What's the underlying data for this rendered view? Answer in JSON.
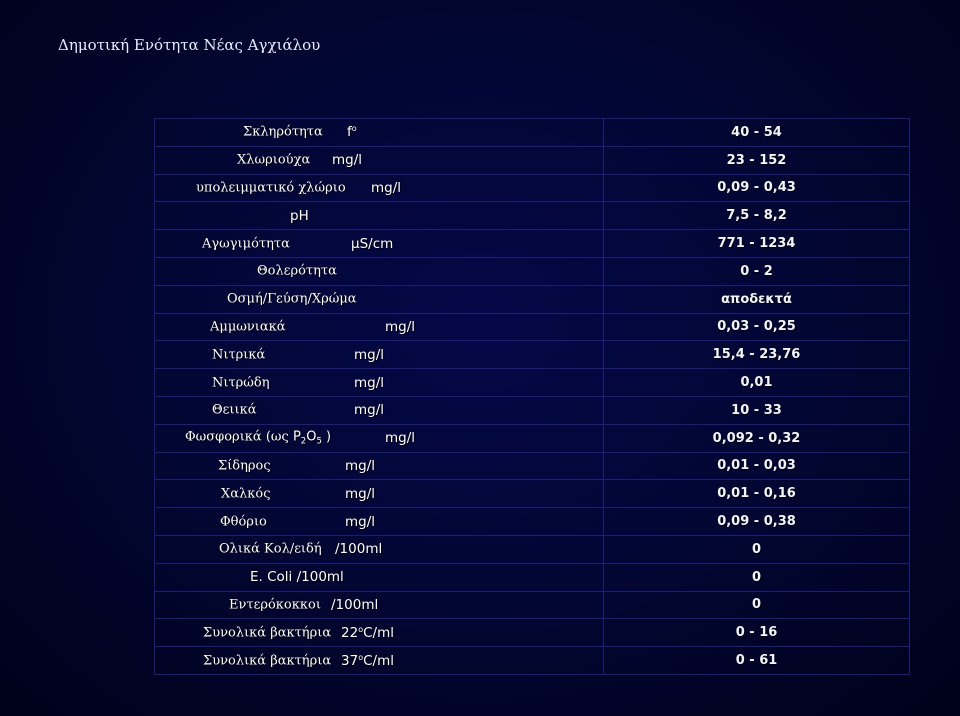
{
  "title": "Δημοτική Ενότητα Νέας Αγχιάλου",
  "rows": [
    {
      "name": "Σκληρότητα",
      "unit": "f",
      "unit_sup": "o",
      "value": "40 - 54"
    },
    {
      "name": "Χλωριούχα",
      "unit": "mg/l",
      "value": "23 - 152"
    },
    {
      "name": "υπολειμματικό χλώριο",
      "unit": "mg/l",
      "value": "0,09 - 0,43"
    },
    {
      "name": "",
      "unit": "pH",
      "value": "7,5 - 8,2"
    },
    {
      "name": "Αγωγιμότητα",
      "unit": "μS/cm",
      "value": "771 - 1234"
    },
    {
      "name": "Θολερότητα",
      "unit": "",
      "value": "0 - 2"
    },
    {
      "name": "Οσμή/Γεύση/Χρώμα",
      "unit": "",
      "value": "αποδεκτά"
    },
    {
      "name": "Αμμωνιακά",
      "unit": "mg/l",
      "value": "0,03 - 0,25"
    },
    {
      "name": "Νιτρικά",
      "unit": "mg/l",
      "value": "15,4 - 23,76"
    },
    {
      "name": "Νιτρώδη",
      "unit": "mg/l",
      "value": "0,01"
    },
    {
      "name": "Θειικά",
      "unit": "mg/l",
      "value": "10 - 33"
    },
    {
      "name": "Φωσφορικά (ως ",
      "formula": {
        "p": "P",
        "p_sub": "2",
        "o": "O",
        "o_sub": "5",
        "close": " )"
      },
      "unit": "mg/l",
      "value": "0,092 - 0,32"
    },
    {
      "name": "Σίδηρος",
      "unit": "mg/l",
      "value": "0,01 - 0,03"
    },
    {
      "name": "Χαλκός",
      "unit": "mg/l",
      "value": "0,01 - 0,16"
    },
    {
      "name": "Φθόριο",
      "unit": "mg/l",
      "value": "0,09 - 0,38"
    },
    {
      "name": "Ολικά Κολ/ειδή",
      "unit": "/100ml",
      "value": "0"
    },
    {
      "name": "",
      "unit": "E. Coli /100ml",
      "value": "0"
    },
    {
      "name": "Εντερόκοκκοι",
      "unit": "/100ml",
      "value": "0"
    },
    {
      "name": "Συνολικά βακτήρια",
      "unit_pre": "22",
      "unit_sup": "o",
      "unit": "C/ml",
      "value": "0  - 16"
    },
    {
      "name": "Συνολικά βακτήρια",
      "unit_pre": "37",
      "unit_sup": "o",
      "unit": "C/ml",
      "value": "0 - 61"
    }
  ]
}
